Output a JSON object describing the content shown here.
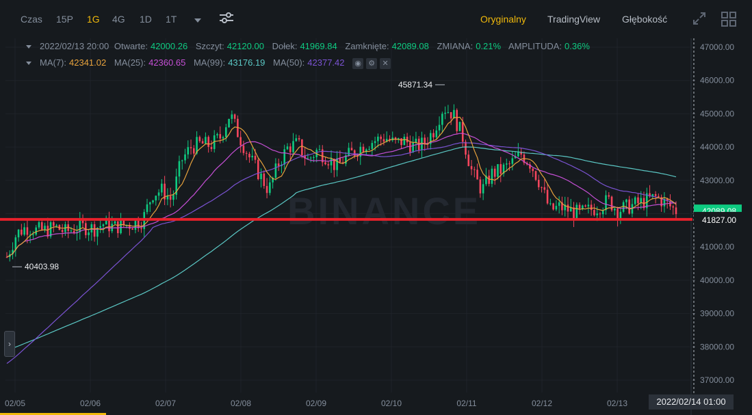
{
  "toolbar": {
    "intervals": [
      {
        "label": "Czas",
        "active": false
      },
      {
        "label": "15P",
        "active": false
      },
      {
        "label": "1G",
        "active": true
      },
      {
        "label": "4G",
        "active": false
      },
      {
        "label": "1D",
        "active": false
      },
      {
        "label": "1T",
        "active": false
      }
    ],
    "views": [
      {
        "label": "Oryginalny",
        "active": true
      },
      {
        "label": "TradingView",
        "active": false
      },
      {
        "label": "Głębokość",
        "active": false
      }
    ]
  },
  "ohlc": {
    "datetime": "2022/02/13 20:00",
    "open_label": "Otwarte:",
    "open": "42000.26",
    "high_label": "Szczyt:",
    "high": "42120.00",
    "low_label": "Dołek:",
    "low": "41969.84",
    "close_label": "Zamknięte:",
    "close": "42089.08",
    "change_label": "ZMIANA:",
    "change": "0.21%",
    "amplitude_label": "AMPLITUDA:",
    "amplitude": "0.36%"
  },
  "ma": {
    "ma7_label": "MA(7):",
    "ma7": "42341.02",
    "ma25_label": "MA(25):",
    "ma25": "42360.65",
    "ma99_label": "MA(99):",
    "ma99": "43176.19",
    "ma50_label": "MA(50):",
    "ma50": "42377.42"
  },
  "watermark": "BINANCE",
  "marks": {
    "high": "45871.34",
    "low": "40403.98"
  },
  "price_tags": {
    "last": "42089.08",
    "line": "41827.00"
  },
  "crosshair_time": "2022/02/14 01:00",
  "colors": {
    "up": "#0ecb81",
    "down": "#f6465d",
    "ma7": "#e8a33d",
    "ma25": "#c64fd6",
    "ma99": "#5bc8c5",
    "ma50": "#7b53d3",
    "hline": "#e8212b",
    "accent": "#f0b90b"
  },
  "chart_data": {
    "type": "candlestick",
    "x_ticks": [
      "02/05",
      "02/06",
      "02/07",
      "02/08",
      "02/09",
      "02/10",
      "02/11",
      "02/12",
      "02/13"
    ],
    "y_ticks": [
      "47000.00",
      "46000.00",
      "45000.00",
      "44000.00",
      "43000.00",
      "42000.00",
      "41000.00",
      "40000.00",
      "39000.00",
      "38000.00",
      "37000.00"
    ],
    "ylim": [
      36700,
      47250
    ],
    "horizontal_line": 41827.0,
    "close_path": [
      40700,
      41400,
      41600,
      41500,
      41500,
      41600,
      41450,
      41550,
      41600,
      41550,
      41700,
      41600,
      41650,
      41700,
      41800,
      42600,
      42700,
      42400,
      43600,
      44000,
      44100,
      44050,
      44300,
      45000,
      44300,
      43700,
      43200,
      42700,
      43500,
      44000,
      44100,
      43600,
      43900,
      43700,
      43400,
      43700,
      43900,
      44100,
      44200,
      44300,
      44100,
      44200,
      44000,
      44100,
      44500,
      45200,
      45000,
      44300,
      43200,
      42700,
      43200,
      43300,
      43500,
      43800,
      43500,
      42900,
      42100,
      42200,
      42100,
      42000,
      42100,
      42200,
      42400,
      42100,
      42200,
      42300,
      42400,
      42500,
      42300,
      42090
    ]
  }
}
